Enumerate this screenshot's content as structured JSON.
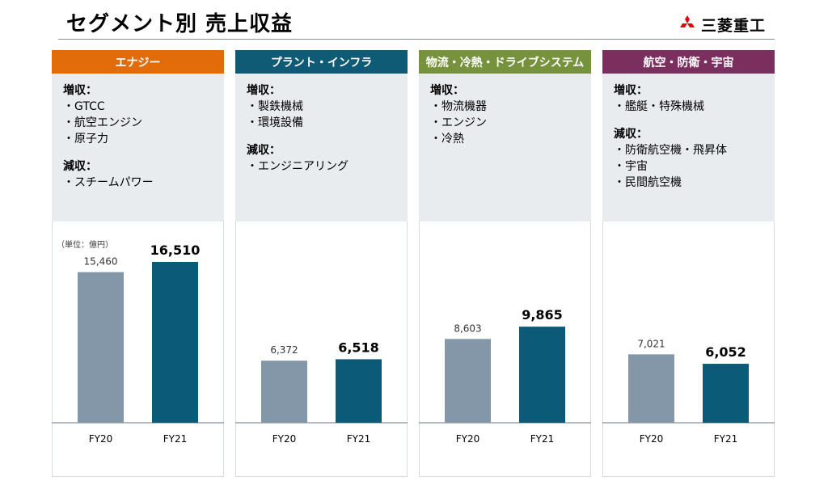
{
  "title": "セグメント別 売上収益",
  "logo_text": "三菱重工",
  "unit_label": "（単位：億円）",
  "panels": [
    {
      "name": "エナジー",
      "color": "#e36c0a",
      "increase_label": "増収：",
      "increase": [
        "・GTCC",
        "・航空エンジン",
        "・原子力"
      ],
      "decrease_label": "減収：",
      "decrease": [
        "・スチームパワー"
      ]
    },
    {
      "name": "プラント・インフラ",
      "color": "#0f5a75",
      "increase_label": "増収：",
      "increase": [
        "・製鉄機械",
        "・環境設備"
      ],
      "decrease_label": "減収：",
      "decrease": [
        "・エンジニアリング"
      ]
    },
    {
      "name": "物流・冷熱・ドライブシステム",
      "color": "#76923c",
      "increase_label": "増収：",
      "increase": [
        "・物流機器",
        "・エンジン",
        "・冷熱"
      ],
      "decrease_label": "",
      "decrease": []
    },
    {
      "name": "航空・防衛・宇宙",
      "color": "#7b2f5f",
      "increase_label": "増収：",
      "increase": [
        "・艦艇・特殊機械"
      ],
      "decrease_label": "減収：",
      "decrease": [
        "・防衛航空機・飛昇体",
        "・宇宙",
        "・民間航空機"
      ]
    }
  ],
  "chart_data": [
    {
      "type": "bar",
      "categories": [
        "FY20",
        "FY21"
      ],
      "values": [
        15460,
        16510
      ],
      "value_labels": [
        "15,460",
        "16,510"
      ],
      "unit": "億円",
      "colors": [
        "#8497a8",
        "#0a5a78"
      ]
    },
    {
      "type": "bar",
      "categories": [
        "FY20",
        "FY21"
      ],
      "values": [
        6372,
        6518
      ],
      "value_labels": [
        "6,372",
        "6,518"
      ],
      "unit": "億円",
      "colors": [
        "#8497a8",
        "#0a5a78"
      ]
    },
    {
      "type": "bar",
      "categories": [
        "FY20",
        "FY21"
      ],
      "values": [
        8603,
        9865
      ],
      "value_labels": [
        "8,603",
        "9,865"
      ],
      "unit": "億円",
      "colors": [
        "#8497a8",
        "#0a5a78"
      ]
    },
    {
      "type": "bar",
      "categories": [
        "FY20",
        "FY21"
      ],
      "values": [
        7021,
        6052
      ],
      "value_labels": [
        "7,021",
        "6,052"
      ],
      "unit": "億円",
      "colors": [
        "#8497a8",
        "#0a5a78"
      ]
    }
  ]
}
